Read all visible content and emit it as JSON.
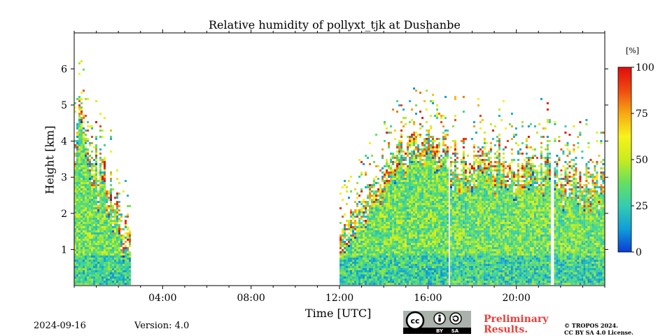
{
  "chart_data": {
    "type": "heatmap",
    "title": "Relative humidity of pollyxt_tjk at Dushanbe",
    "xlabel": "Time [UTC]",
    "ylabel": "Height [km]",
    "x_ticks": [
      "04:00",
      "08:00",
      "12:00",
      "16:00",
      "20:00"
    ],
    "x_tick_hours": [
      4,
      8,
      12,
      16,
      20
    ],
    "xlim_hours": [
      0,
      24
    ],
    "y_ticks": [
      1,
      2,
      3,
      4,
      5,
      6
    ],
    "ylim_km": [
      0,
      7
    ],
    "colorbar": {
      "label": "[%]",
      "range": [
        0,
        100
      ],
      "ticks": [
        0,
        25,
        50,
        75,
        100
      ],
      "colormap": [
        "#0a3cd8",
        "#109ed8",
        "#33cdb0",
        "#66e060",
        "#c8ec1e",
        "#f7f31b",
        "#f7a812",
        "#ef4a10",
        "#e00c0c"
      ]
    },
    "data_segments": [
      {
        "start_h": 0.0,
        "end_h": 2.5,
        "top_km": 5.3,
        "dominant_rh_pct": "25-45"
      },
      {
        "start_h": 12.0,
        "end_h": 16.9,
        "top_km": 4.2,
        "dominant_rh_pct": "30-60"
      },
      {
        "start_h": 17.0,
        "end_h": 21.5,
        "top_km": 3.9,
        "dominant_rh_pct": "30-60"
      },
      {
        "start_h": 21.7,
        "end_h": 24.0,
        "top_km": 3.3,
        "dominant_rh_pct": "30-60"
      }
    ],
    "gaps_hours": [
      [
        2.5,
        12.0
      ],
      [
        16.9,
        17.0
      ],
      [
        21.5,
        21.7
      ]
    ]
  },
  "footer": {
    "date": "2024-09-16",
    "version": "Version: 4.0",
    "preliminary_line1": "Preliminary",
    "preliminary_line2": "Results.",
    "copyright_line1": "© TROPOS 2024.",
    "copyright_line2": "CC BY SA 4.0 License.",
    "badge_text": [
      "cc",
      "BY",
      "SA"
    ]
  }
}
